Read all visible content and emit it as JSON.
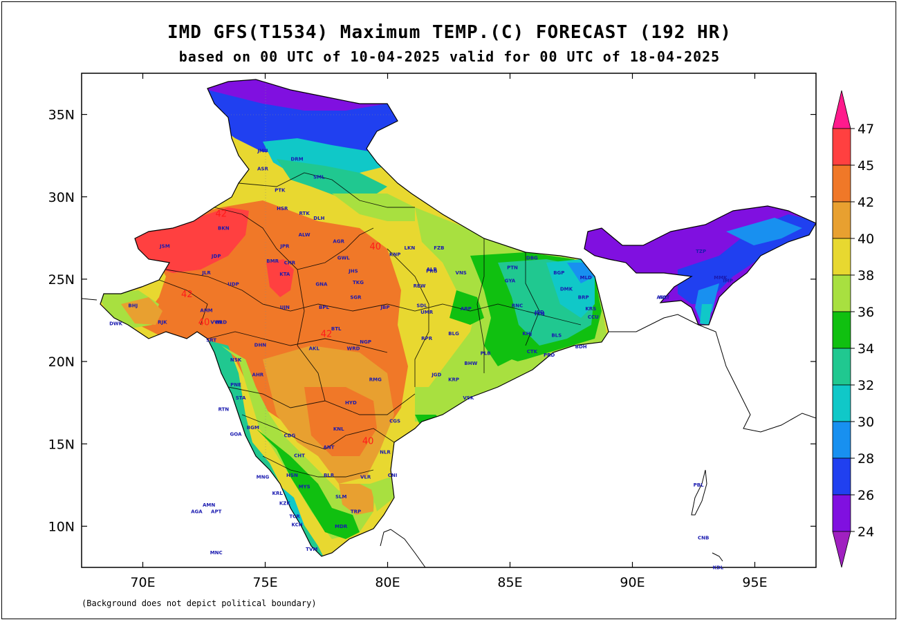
{
  "title": "IMD GFS(T1534) Maximum TEMP.(C) FORECAST (192 HR)",
  "subtitle": "based on 00 UTC of 10-04-2025 valid for 00 UTC of 18-04-2025",
  "footnote": "(Background does not depict political boundary)",
  "axes": {
    "x_ticks": [
      "70E",
      "75E",
      "80E",
      "85E",
      "90E",
      "95E"
    ],
    "y_ticks": [
      "35N",
      "30N",
      "25N",
      "20N",
      "15N",
      "10N"
    ]
  },
  "colorbar": {
    "labels": [
      "47",
      "45",
      "42",
      "40",
      "38",
      "36",
      "34",
      "32",
      "30",
      "28",
      "26",
      "24"
    ],
    "colors": [
      "#ff1a8c",
      "#ff4040",
      "#f07828",
      "#e8a030",
      "#e8d830",
      "#a8e040",
      "#10c010",
      "#20c890",
      "#10c8c8",
      "#1890f0",
      "#2040f0",
      "#8010e0",
      "#a020c0"
    ]
  },
  "contour_labels": [
    "42",
    "40",
    "42",
    "40",
    "42",
    "40"
  ],
  "stations": [
    "JSM",
    "BKN",
    "JDP",
    "JLR",
    "UDP",
    "BHJ",
    "AHM",
    "VVN",
    "RJK",
    "BRD",
    "DWK",
    "SRT",
    "DHN",
    "NSK",
    "PNE",
    "AHR",
    "STA",
    "RTN",
    "GOA",
    "CDG",
    "BGM",
    "BLR",
    "MYS",
    "HSN",
    "CHT",
    "MNG",
    "KZK",
    "KCH",
    "KRL",
    "TVM",
    "TCR",
    "SLM",
    "MDR",
    "TRP",
    "VLR",
    "CNI",
    "NLR",
    "ANT",
    "KNL",
    "HYD",
    "RMG",
    "CGS",
    "WRD",
    "NGP",
    "AKL",
    "BTL",
    "BPL",
    "JBP",
    "UJN",
    "GNA",
    "SGR",
    "TKG",
    "KTA",
    "BMR",
    "CHR",
    "JPR",
    "ALW",
    "DLH",
    "RTK",
    "HSR",
    "SML",
    "DRM",
    "PTK",
    "ASR",
    "JMU",
    "AGR",
    "GWL",
    "JHS",
    "LKN",
    "KNP",
    "FZB",
    "PRG",
    "VNS",
    "ALB",
    "REW",
    "SDL",
    "UMR",
    "RPR",
    "BLG",
    "JGD",
    "KRP",
    "BHW",
    "VSK",
    "PLB",
    "CTK",
    "PRD",
    "BDH",
    "BLS",
    "KHJ",
    "TTN",
    "JSD",
    "RNC",
    "ABP",
    "DHN",
    "GYA",
    "PTN",
    "DBG",
    "BGP",
    "DMK",
    "MLD",
    "BRP",
    "KRS",
    "ASL",
    "CCU",
    "AGT",
    "MMK",
    "TZP",
    "IMP",
    "AMN",
    "AGA",
    "APT",
    "MNC",
    "PBL",
    "CNB",
    "KDL"
  ],
  "map": {
    "projection": "lat-lon",
    "lon_range": [
      67.5,
      97.5
    ],
    "lat_range": [
      7.5,
      37.5
    ],
    "variable": "Maximum temperature (C)"
  }
}
